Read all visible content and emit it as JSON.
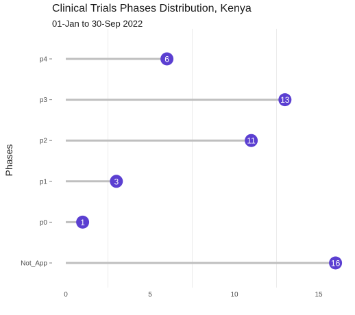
{
  "chart_data": {
    "type": "lollipop",
    "title": "Clinical Trials Phases Distribution, Kenya",
    "subtitle": "01-Jan to 30-Sep 2022",
    "ylabel": "Phases",
    "xlabel": "",
    "categories": [
      "p4",
      "p3",
      "p2",
      "p1",
      "p0",
      "Not_App"
    ],
    "values": [
      6,
      13,
      11,
      3,
      1,
      16
    ],
    "xlim": [
      0,
      16
    ],
    "xticks": [
      0,
      5,
      10,
      15
    ],
    "grid": "vertical",
    "colors": {
      "stem": "#bfbfbf",
      "dot": "#5b3fd1",
      "grid": "#ebebeb"
    }
  }
}
